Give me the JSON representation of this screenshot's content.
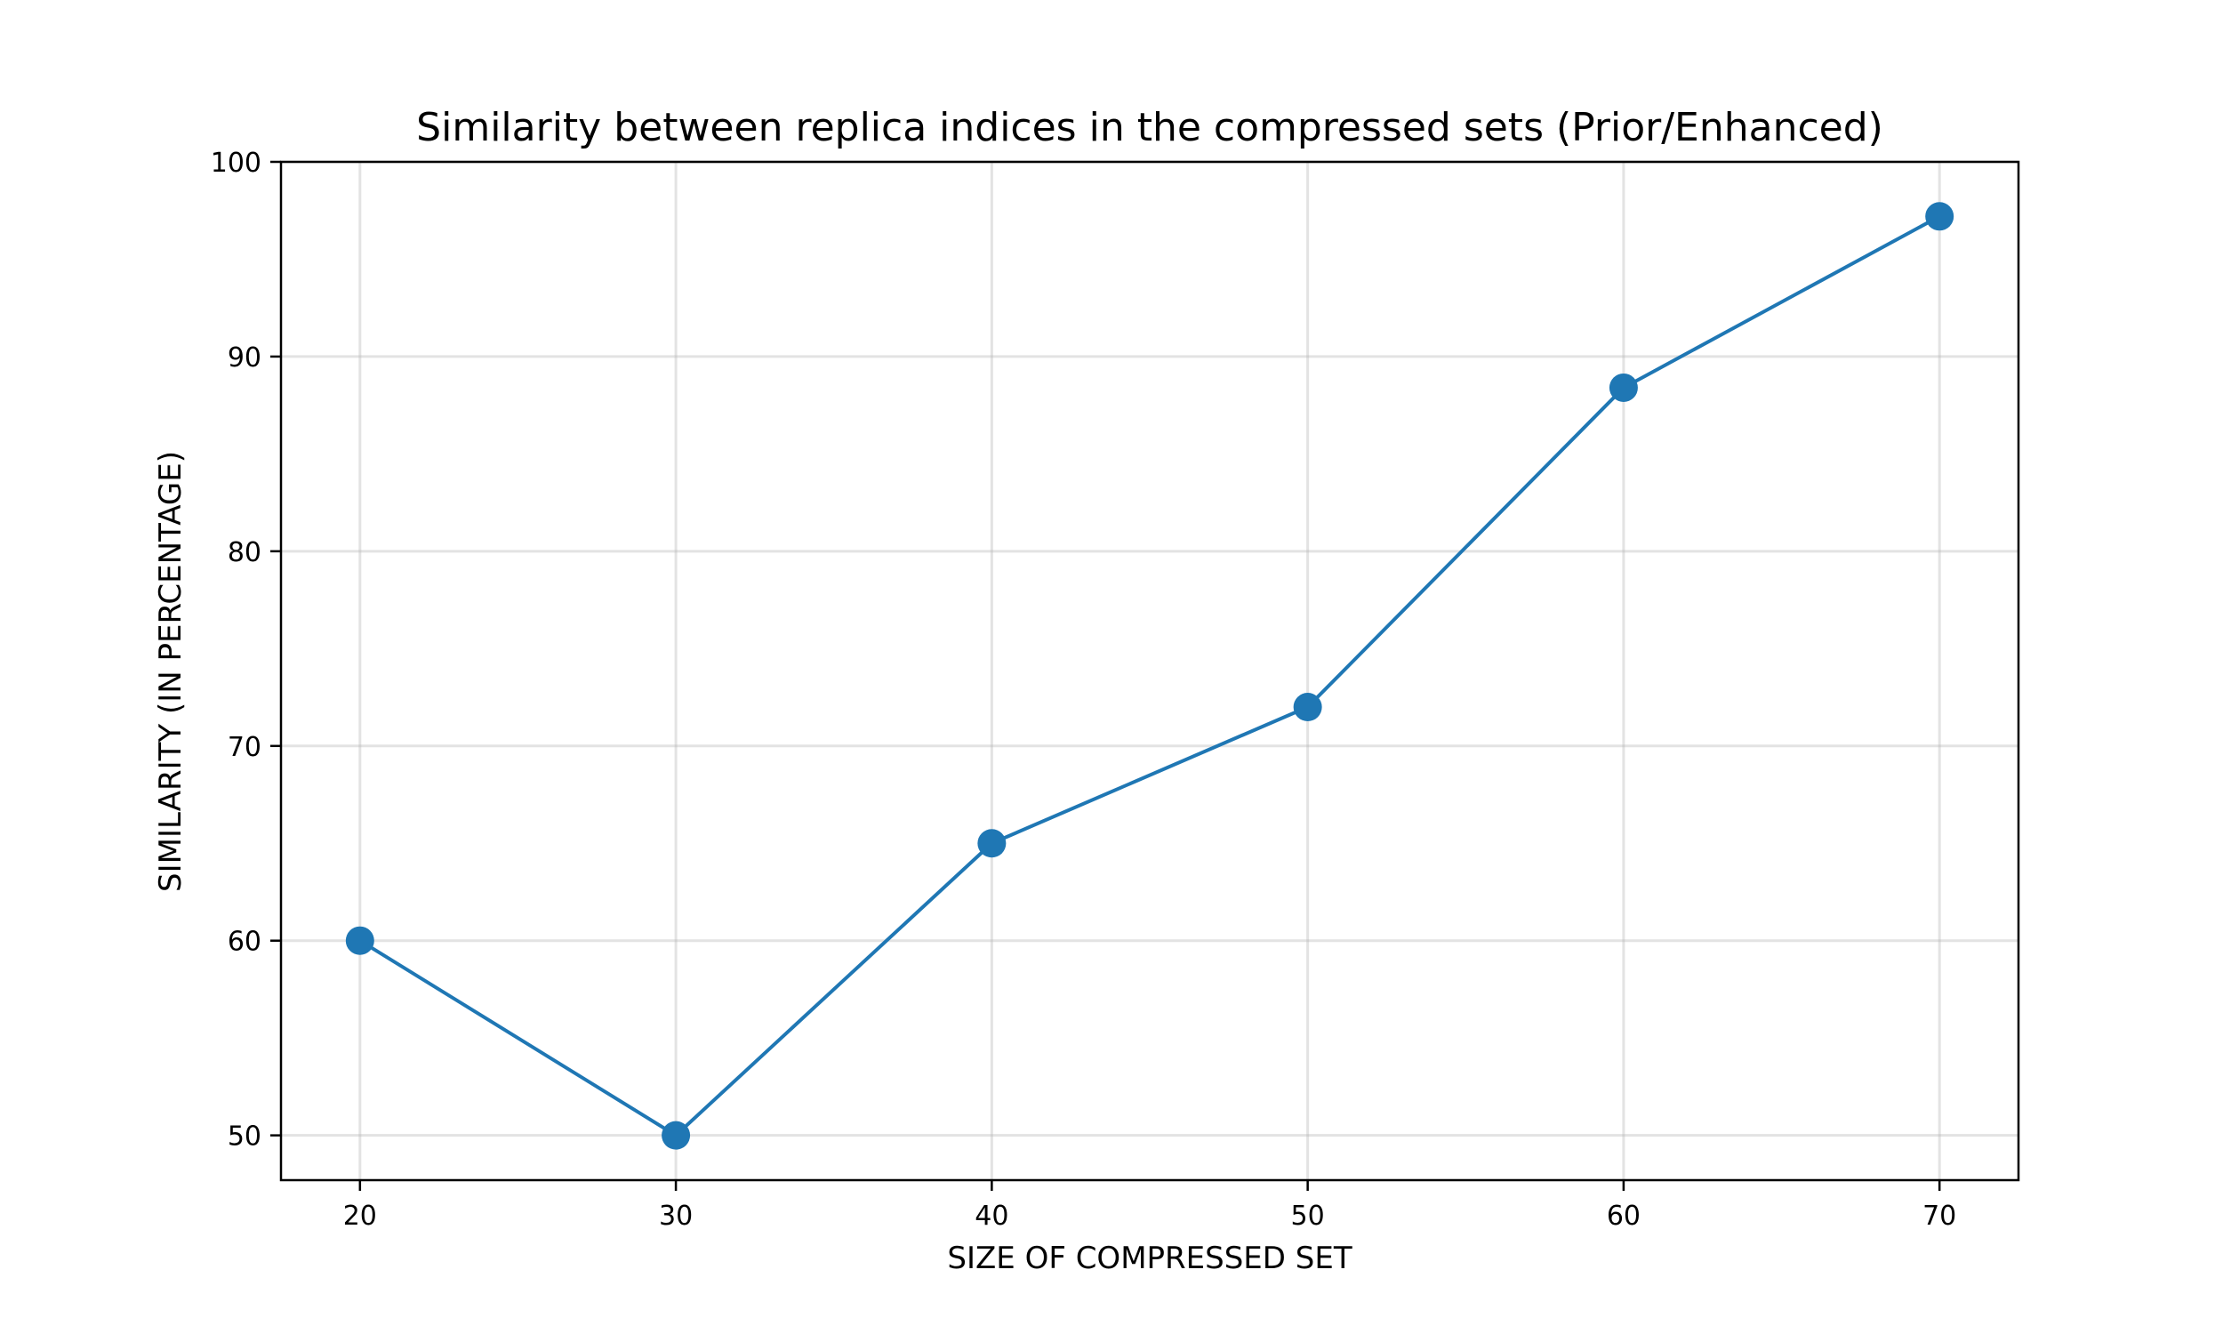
{
  "chart_data": {
    "type": "line",
    "title": "Similarity between replica indices in the compressed sets (Prior/Enhanced)",
    "xlabel": "SIZE OF COMPRESSED SET",
    "ylabel": "SIMILARITY (IN PERCENTAGE)",
    "x": [
      20,
      30,
      40,
      50,
      60,
      70
    ],
    "y": [
      60,
      50,
      65,
      72,
      88.4,
      97.2
    ],
    "xlim": [
      17.5,
      72.5
    ],
    "ylim": [
      47.7,
      100
    ],
    "xticks": [
      20,
      30,
      40,
      50,
      60,
      70
    ],
    "yticks": [
      50,
      60,
      70,
      80,
      90,
      100
    ],
    "grid": true,
    "line_color": "#1f77b4",
    "marker_color": "#1f77b4"
  }
}
